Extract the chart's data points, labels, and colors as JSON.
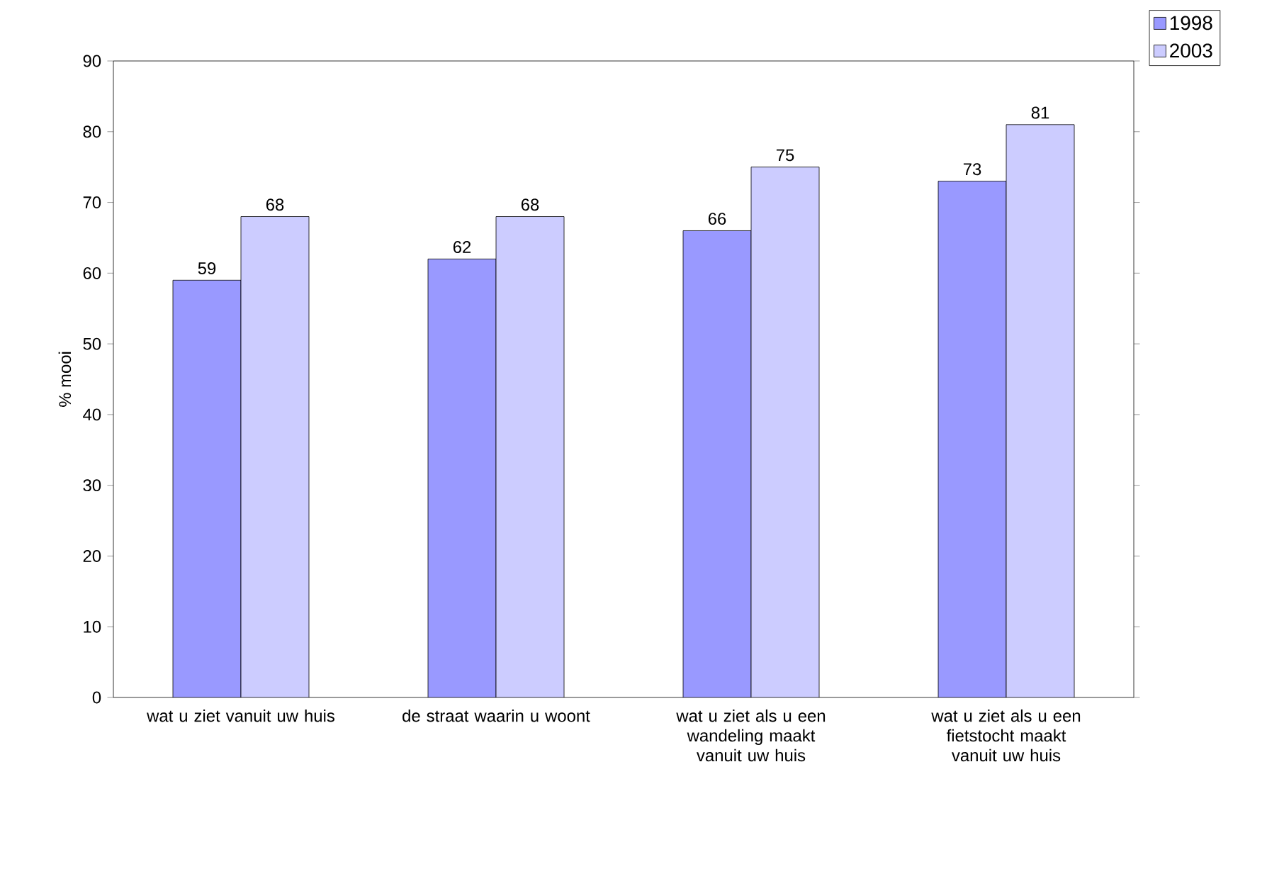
{
  "chart_data": {
    "type": "bar",
    "ylabel": "% mooi",
    "categories": [
      "wat u ziet vanuit uw huis",
      "de straat waarin u woont",
      "wat u ziet als u een wandeling maakt vanuit uw huis",
      "wat u ziet als u een fietstocht maakt vanuit uw huis"
    ],
    "series": [
      {
        "name": "1998",
        "color": "#9999ff",
        "values": [
          59,
          62,
          66,
          73
        ]
      },
      {
        "name": "2003",
        "color": "#ccccff",
        "values": [
          68,
          68,
          75,
          81
        ]
      }
    ],
    "ylim": [
      0,
      90
    ],
    "yticks": [
      0,
      10,
      20,
      30,
      40,
      50,
      60,
      70,
      80,
      90
    ],
    "data_labels": true,
    "legend": "top right",
    "grid": false
  }
}
